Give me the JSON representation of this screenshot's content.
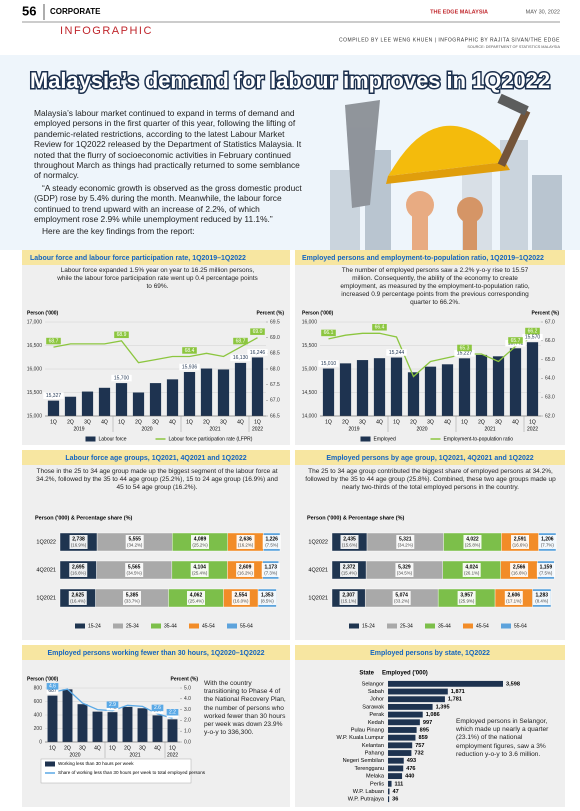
{
  "header": {
    "page": "56",
    "section": "CORPORATE",
    "kicker": "INFOGRAPHIC",
    "masthead": "THE EDGE MALAYSIA",
    "date": "MAY 30, 2022",
    "credits": "COMPILED BY LEE WENG KHUEN | INFOGRAPHIC BY RAJITA SIVAN/THE EDGE",
    "source": "SOURCE: DEPARTMENT OF STATISTICS MALAYSIA"
  },
  "title": "Malaysia’s demand for labour improves in 1Q2022",
  "intro": [
    "Malaysia’s labour market continued to expand in terms of demand and employed persons in the first quarter of this year, following the lifting of pandemic-related restrictions, according to the latest Labour Market Review for 1Q2022 released by the Department of Statistics Malaysia. It noted that the flurry of socioeconomic activities in February continued throughout March as things had practically returned to some semblance of normalcy.",
    "“A steady economic growth is observed as the gross domestic product (GDP) rose by 5.4% during the month. Meanwhile, the labour force continued to trend upward with an increase of 2.2%, of which employment rose 2.9% while unemployment reduced by 11.1%.”",
    "Here are the key findings from the report:"
  ],
  "chart_data": [
    {
      "type": "combo",
      "title": "Labour force and labour force participation rate, 1Q2019–1Q2022",
      "subtitle": "Labour force expanded 1.5% year on year to 16.25 million persons, while the labour force participation rate went up 0.4 percentage points to 69%.",
      "ylabel": "Person ('000)",
      "y2label": "Percent (%)",
      "categories": [
        "1Q",
        "2Q",
        "3Q",
        "4Q",
        "1Q",
        "2Q",
        "3Q",
        "4Q",
        "1Q",
        "2Q",
        "3Q",
        "4Q",
        "1Q"
      ],
      "year_row": [
        "2019",
        null,
        null,
        null,
        "2020",
        null,
        null,
        null,
        "2021",
        null,
        null,
        null,
        "2022"
      ],
      "ylim": [
        15000,
        17000
      ],
      "yticks": [
        {
          "value": 15000,
          "label": "15,000"
        },
        {
          "value": 15500,
          "label": "15,500"
        },
        {
          "value": 16000,
          "label": "16,000"
        },
        {
          "value": 16500,
          "label": "16,500"
        },
        {
          "value": 17000,
          "label": "17,000"
        }
      ],
      "y2lim": [
        66.5,
        69.5
      ],
      "y2ticks": [
        66.5,
        {
          "value": 67,
          "label": "67.0"
        },
        67.5,
        {
          "value": 68,
          "label": "68.0"
        },
        68.5,
        {
          "value": 69,
          "label": "69.0"
        },
        69.5
      ],
      "grid": true,
      "legend": "bottom",
      "series": [
        {
          "name": "Labour force",
          "type": "bar",
          "color": "#1e3350",
          "values": [
            15327,
            15410,
            15520,
            15600,
            15700,
            15500,
            15700,
            15780,
            15936,
            16010,
            15990,
            16130,
            16246
          ],
          "value_labels": [
            "15,327",
            null,
            null,
            null,
            "15,700",
            null,
            null,
            null,
            "15,936",
            null,
            null,
            "16,130",
            "16,246"
          ]
        },
        {
          "name": "Labour force participation rate (LFPR)",
          "type": "line",
          "axis": "y2",
          "color": "#8cc63f",
          "values": [
            68.7,
            68.8,
            68.8,
            68.8,
            68.9,
            68.2,
            68.3,
            68.4,
            68.4,
            68.5,
            68.4,
            68.7,
            69.0
          ],
          "value_labels": [
            "68.7",
            null,
            null,
            null,
            "68.9",
            null,
            null,
            null,
            "68.4",
            null,
            null,
            "68.7",
            "69.0"
          ]
        }
      ]
    },
    {
      "type": "combo",
      "title": "Employed persons and employment-to-population ratio, 1Q2019–1Q2022",
      "subtitle": "The number of employed persons saw a 2.2% y-o-y rise to 15.57 million. Consequently, the ability of the economy to create employment, as measured by the employment-to-population ratio, increased 0.9 percentage points from the previous corresponding quarter to 66.2%.",
      "ylabel": "Person ('000)",
      "y2label": "Percent (%)",
      "categories": [
        "1Q",
        "2Q",
        "3Q",
        "4Q",
        "1Q",
        "2Q",
        "3Q",
        "4Q",
        "1Q",
        "2Q",
        "3Q",
        "4Q",
        "1Q"
      ],
      "year_row": [
        "2019",
        null,
        null,
        null,
        "2020",
        null,
        null,
        null,
        "2021",
        null,
        null,
        null,
        "2022"
      ],
      "ylim": [
        14000,
        16000
      ],
      "yticks": [
        {
          "value": 14000,
          "label": "14,000"
        },
        {
          "value": 14500,
          "label": "14,500"
        },
        {
          "value": 15000,
          "label": "15,000"
        },
        {
          "value": 15500,
          "label": "15,500"
        },
        {
          "value": 16000,
          "label": "16,000"
        }
      ],
      "y2lim": [
        62,
        67
      ],
      "y2ticks": [
        {
          "value": 62,
          "label": "62.0"
        },
        {
          "value": 63,
          "label": "63.0"
        },
        {
          "value": 64,
          "label": "64.0"
        },
        {
          "value": 65,
          "label": "65.0"
        },
        {
          "value": 66,
          "label": "66.0"
        },
        {
          "value": 67,
          "label": "67.0"
        }
      ],
      "grid": true,
      "legend": "bottom",
      "series": [
        {
          "name": "Employed",
          "type": "bar",
          "color": "#1e3350",
          "values": [
            15010,
            15120,
            15190,
            15230,
            15244,
            14930,
            15050,
            15100,
            15227,
            15300,
            15270,
            15441,
            15570
          ],
          "value_labels": [
            "15,010",
            null,
            null,
            null,
            "15,244",
            null,
            null,
            null,
            "15,227",
            null,
            null,
            "15,441",
            "15,570"
          ]
        },
        {
          "name": "Employment-to-population ratio",
          "type": "line",
          "axis": "y2",
          "color": "#8cc63f",
          "values": [
            66.1,
            66.3,
            66.4,
            66.4,
            66.2,
            64.1,
            64.9,
            65.1,
            65.3,
            65.3,
            64.9,
            65.7,
            66.2
          ],
          "value_labels": [
            "66.1",
            null,
            null,
            "66.4",
            null,
            null,
            null,
            null,
            "65.3",
            null,
            null,
            "65.7",
            "66.2"
          ]
        }
      ]
    },
    {
      "type": "stacked_bar",
      "title": "Labour force age groups, 1Q2021, 4Q2021 and 1Q2022",
      "subtitle": "Those in the 25 to 34 age group made up the biggest segment of the labour force at 34.2%, followed by the 35 to 44 age group (25.2%), 15 to 24 age group (16.9%) and 45 to 54 age group (16.2%).",
      "axis_label": "Person ('000) & Percentage share (%)",
      "legend": "bottom",
      "categories": [
        "1Q2022",
        "4Q2021",
        "1Q2021"
      ],
      "series": [
        {
          "name": "15-24",
          "color": "#1f3550",
          "values": [
            2738,
            2695,
            2625
          ],
          "value_labels": [
            "2,738",
            "2,695",
            "2,625"
          ],
          "shares": [
            16.9,
            16.6,
            16.4
          ],
          "share_labels": [
            "(16.9%)",
            "(16.6%)",
            "(16.4%)"
          ]
        },
        {
          "name": "25-34",
          "color": "#a9a9a9",
          "values": [
            5555,
            5565,
            5385
          ],
          "value_labels": [
            "5,555",
            "5,565",
            "5,385"
          ],
          "shares": [
            34.2,
            34.5,
            33.7
          ],
          "share_labels": [
            "(34.2%)",
            "(34.5%)",
            "(33.7%)"
          ]
        },
        {
          "name": "35-44",
          "color": "#7cbf4a",
          "values": [
            4089,
            4104,
            4062
          ],
          "value_labels": [
            "4,089",
            "4,104",
            "4,062"
          ],
          "shares": [
            25.2,
            25.4,
            25.4
          ],
          "share_labels": [
            "(25.2%)",
            "(25.4%)",
            "(25.4%)"
          ]
        },
        {
          "name": "45-54",
          "color": "#f28c28",
          "values": [
            2636,
            2609,
            2554
          ],
          "value_labels": [
            "2,636",
            "2,609",
            "2,554"
          ],
          "shares": [
            16.2,
            16.2,
            16.0
          ],
          "share_labels": [
            "(16.2%)",
            "(16.2%)",
            "(16.0%)"
          ]
        },
        {
          "name": "55-64",
          "color": "#5da3dc",
          "values": [
            1226,
            1173,
            1353
          ],
          "value_labels": [
            "1,226",
            "1,173",
            "1,353"
          ],
          "shares": [
            7.5,
            7.3,
            8.5
          ],
          "share_labels": [
            "(7.5%)",
            "(7.3%)",
            "(8.5%)"
          ]
        }
      ]
    },
    {
      "type": "stacked_bar",
      "title": "Employed persons by age group, 1Q2021, 4Q2021 and 1Q2022",
      "subtitle": "The 25 to 34 age group contributed the biggest share of employed persons at 34.2%, followed by the 35 to 44 age group (25.8%). Combined, these two age groups made up nearly two-thirds of the total employed persons in the country.",
      "axis_label": "Person ('000) & Percentage share (%)",
      "legend": "bottom",
      "categories": [
        "1Q2022",
        "4Q2021",
        "1Q2021"
      ],
      "series": [
        {
          "name": "15-24",
          "color": "#1f3550",
          "values": [
            2435,
            2372,
            2307
          ],
          "value_labels": [
            "2,435",
            "2,372",
            "2,307"
          ],
          "shares": [
            15.6,
            15.4,
            15.1
          ],
          "share_labels": [
            "(15.6%)",
            "(15.4%)",
            "(15.1%)"
          ]
        },
        {
          "name": "25-34",
          "color": "#a9a9a9",
          "values": [
            5321,
            5329,
            5074
          ],
          "value_labels": [
            "5,321",
            "5,329",
            "5,074"
          ],
          "shares": [
            34.2,
            34.5,
            33.2
          ],
          "share_labels": [
            "(34.2%)",
            "(34.5%)",
            "(33.2%)"
          ]
        },
        {
          "name": "35-44",
          "color": "#7cbf4a",
          "values": [
            4022,
            4024,
            3957
          ],
          "value_labels": [
            "4,022",
            "4,024",
            "3,957"
          ],
          "shares": [
            25.8,
            26.1,
            25.9
          ],
          "share_labels": [
            "(25.8%)",
            "(26.1%)",
            "(25.9%)"
          ]
        },
        {
          "name": "45-54",
          "color": "#f28c28",
          "values": [
            2591,
            2566,
            2606
          ],
          "value_labels": [
            "2,591",
            "2,566",
            "2,606"
          ],
          "shares": [
            16.6,
            16.6,
            17.1
          ],
          "share_labels": [
            "(16.6%)",
            "(16.6%)",
            "(17.1%)"
          ]
        },
        {
          "name": "55-64",
          "color": "#5da3dc",
          "values": [
            1206,
            1159,
            1283
          ],
          "value_labels": [
            "1,206",
            "1,159",
            "1,283"
          ],
          "shares": [
            7.7,
            7.5,
            8.4
          ],
          "share_labels": [
            "(7.7%)",
            "(7.5%)",
            "(8.4%)"
          ]
        }
      ]
    },
    {
      "type": "combo",
      "title": "Employed persons working fewer than 30 hours, 1Q2020–1Q2022",
      "note": "With the country transitioning to Phase 4 of the National Recovery Plan, the number of persons who worked fewer than 30 hours per week was down 23.9% y-o-y to 336,300.",
      "ylabel": "Person ('000)",
      "y2label": "Percent (%)",
      "categories": [
        "1Q",
        "2Q",
        "3Q",
        "4Q",
        "1Q",
        "2Q",
        "3Q",
        "4Q",
        "1Q"
      ],
      "year_row": [
        "2020",
        null,
        null,
        null,
        "2021",
        null,
        null,
        null,
        "2022"
      ],
      "ylim": [
        0,
        800
      ],
      "yticks": [
        0,
        200,
        400,
        600,
        800
      ],
      "y2lim": [
        0,
        5
      ],
      "y2ticks": [
        {
          "value": 0,
          "label": "0.0"
        },
        {
          "value": 1,
          "label": "1.0"
        },
        {
          "value": 2,
          "label": "2.0"
        },
        {
          "value": 3,
          "label": "3.0"
        },
        {
          "value": 4,
          "label": "4.0"
        },
        {
          "value": 5,
          "label": "5.0"
        }
      ],
      "grid": true,
      "legend": "box",
      "series": [
        {
          "name": "Working less than 30 hours per week",
          "type": "bar",
          "color": "#1e3350",
          "values": [
            687,
            780,
            560,
            450,
            442,
            520,
            500,
            394,
            336
          ],
          "value_labels": [
            "687",
            null,
            null,
            null,
            "442",
            null,
            null,
            "394",
            "336"
          ]
        },
        {
          "name": "Share of working less than 30 hours per week to total employed persons",
          "type": "line",
          "axis": "y2",
          "color": "#5aa9e6",
          "values": [
            4.6,
            4.9,
            3.6,
            3.0,
            2.9,
            3.4,
            3.3,
            2.6,
            2.2
          ],
          "value_labels": [
            "4.6",
            null,
            null,
            null,
            "2.9",
            null,
            null,
            "2.6",
            "2.2"
          ]
        }
      ]
    },
    {
      "type": "hbar",
      "title": "Employed persons by state, 1Q2022",
      "category_header": "State",
      "value_header": "Employed ('000)",
      "color": "#1e3350",
      "note": "Employed persons in Selangor, which made up nearly a quarter (23.1%) of the national employment figures, saw a 3% reduction y-o-y to 3.6 million.",
      "categories": [
        "Selangor",
        "Sabah",
        "Johor",
        "Sarawak",
        "Perak",
        "Kedah",
        "Pulau Pinang",
        "W.P. Kuala Lumpur",
        "Kelantan",
        "Pahang",
        "Negeri Sembilan",
        "Terengganu",
        "Melaka",
        "Perlis",
        "W.P. Labuan",
        "W.P. Putrajaya"
      ],
      "values": [
        3598,
        1871,
        1781,
        1395,
        1086,
        997,
        895,
        859,
        757,
        732,
        493,
        476,
        440,
        111,
        47,
        36
      ],
      "value_labels": [
        "3,598",
        "1,871",
        "1,781",
        "1,395",
        "1,086",
        "997",
        "895",
        "859",
        "757",
        "732",
        "493",
        "476",
        "440",
        "111",
        "47",
        "36"
      ]
    }
  ]
}
